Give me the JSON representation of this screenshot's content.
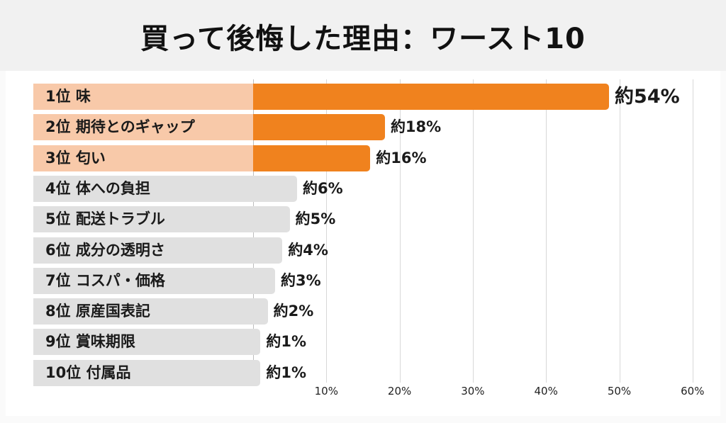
{
  "title": "買って後悔した理由：ワースト10",
  "chart_data": {
    "type": "bar",
    "orientation": "horizontal",
    "title": "買って後悔した理由：ワースト10",
    "categories": [
      "1位 味",
      "2位 期待とのギャップ",
      "3位 匂い",
      "4位 体への負担",
      "5位 配送トラブル",
      "6位 成分の透明さ",
      "7位 コスパ・価格",
      "8位 原産国表記",
      "9位 賞味期限",
      "10位 付属品"
    ],
    "values": [
      54,
      18,
      16,
      6,
      5,
      4,
      3,
      2,
      1,
      1
    ],
    "value_labels": [
      "約54%",
      "約18%",
      "約16%",
      "約6%",
      "約5%",
      "約4%",
      "約3%",
      "約2%",
      "約1%",
      "約1%"
    ],
    "xlim": [
      0,
      60
    ],
    "x_ticks": [
      "10%",
      "20%",
      "30%",
      "40%",
      "50%",
      "60%"
    ],
    "grid": true,
    "highlight_count": 3,
    "colors": {
      "highlight_bar": "#f0821e",
      "highlight_cell": "#f8c9a9",
      "other_bar": "#e0e0e0"
    }
  }
}
